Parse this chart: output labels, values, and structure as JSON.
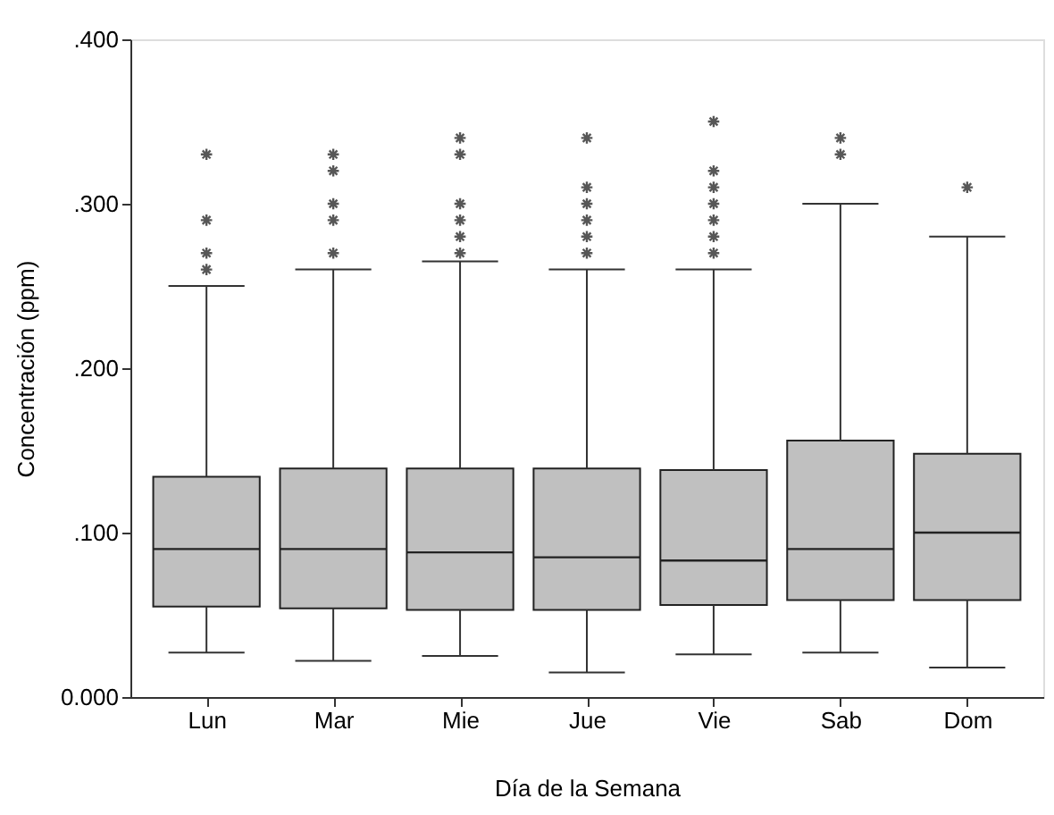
{
  "chart_data": {
    "type": "box",
    "xlabel": "Día de la Semana",
    "ylabel": "Concentración (ppm)",
    "categories": [
      "Lun",
      "Mar",
      "Mie",
      "Jue",
      "Vie",
      "Sab",
      "Dom"
    ],
    "color": "#c0c0c0",
    "marker": "star",
    "grid": false,
    "ylim": [
      0,
      0.4
    ],
    "yticks": [
      {
        "value": 0,
        "label": "0.000"
      },
      {
        "value": 0.1,
        "label": ".100"
      },
      {
        "value": 0.2,
        "label": ".200"
      },
      {
        "value": 0.3,
        "label": ".300"
      },
      {
        "value": 0.4,
        "label": ".400"
      }
    ],
    "boxes": [
      {
        "low": 0.027,
        "q1": 0.055,
        "median": 0.09,
        "q3": 0.134,
        "high": 0.25,
        "outliers": [
          0.33,
          0.29,
          0.27,
          0.26
        ]
      },
      {
        "low": 0.022,
        "q1": 0.054,
        "median": 0.09,
        "q3": 0.139,
        "high": 0.26,
        "outliers": [
          0.33,
          0.32,
          0.3,
          0.29,
          0.27
        ]
      },
      {
        "low": 0.025,
        "q1": 0.053,
        "median": 0.088,
        "q3": 0.139,
        "high": 0.265,
        "outliers": [
          0.34,
          0.33,
          0.3,
          0.29,
          0.28,
          0.27
        ]
      },
      {
        "low": 0.015,
        "q1": 0.053,
        "median": 0.085,
        "q3": 0.139,
        "high": 0.26,
        "outliers": [
          0.34,
          0.31,
          0.3,
          0.29,
          0.28,
          0.27
        ]
      },
      {
        "low": 0.026,
        "q1": 0.056,
        "median": 0.083,
        "q3": 0.138,
        "high": 0.26,
        "outliers": [
          0.35,
          0.32,
          0.31,
          0.3,
          0.29,
          0.28,
          0.27
        ]
      },
      {
        "low": 0.027,
        "q1": 0.059,
        "median": 0.09,
        "q3": 0.156,
        "high": 0.3,
        "outliers": [
          0.34,
          0.33
        ]
      },
      {
        "low": 0.018,
        "q1": 0.059,
        "median": 0.1,
        "q3": 0.148,
        "high": 0.28,
        "outliers": [
          0.31
        ]
      }
    ]
  }
}
